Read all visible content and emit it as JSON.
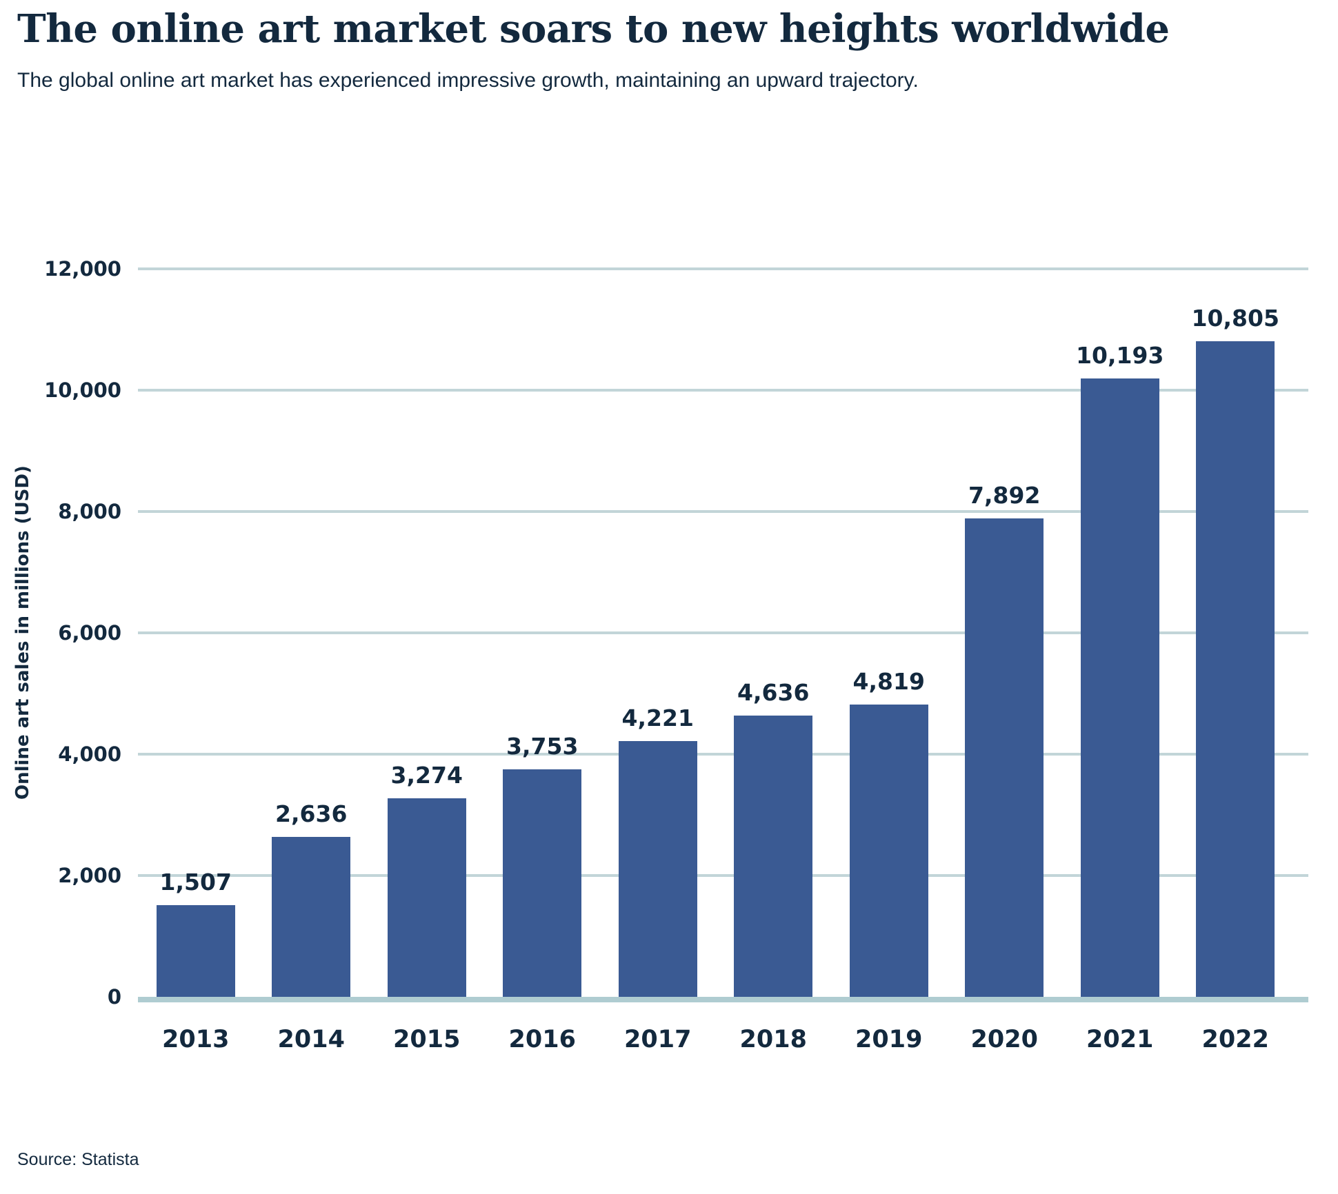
{
  "header": {
    "title": "The online art market soars to new heights worldwide",
    "subtitle": "The global online art market has experienced impressive growth, maintaining an upward trajectory."
  },
  "chart_data": {
    "type": "bar",
    "title": "The online art market soars to new heights worldwide",
    "subtitle": "The global online art market has experienced impressive growth, maintaining an upward trajectory.",
    "categories": [
      "2013",
      "2014",
      "2015",
      "2016",
      "2017",
      "2018",
      "2019",
      "2020",
      "2021",
      "2022"
    ],
    "values": [
      1507,
      2636,
      3274,
      3753,
      4221,
      4636,
      4819,
      7892,
      10193,
      10805
    ],
    "value_labels": [
      "1,507",
      "2,636",
      "3,274",
      "3,753",
      "4,221",
      "4,636",
      "4,819",
      "7,892",
      "10,193",
      "10,805"
    ],
    "xlabel": "",
    "ylabel": "Online art sales in millions (USD)",
    "ylim": [
      0,
      12000
    ],
    "yticks": [
      0,
      2000,
      4000,
      6000,
      8000,
      10000,
      12000
    ],
    "ytick_labels": [
      "0",
      "2,000",
      "4,000",
      "6,000",
      "8,000",
      "10,000",
      "12,000"
    ],
    "grid": true,
    "legend": false,
    "colors": {
      "bar": "#3a5a93",
      "gridline": "#c2d5d8",
      "baseline": "#afccd1",
      "text": "#13293e"
    }
  },
  "source": {
    "label": "Source: Statista"
  }
}
